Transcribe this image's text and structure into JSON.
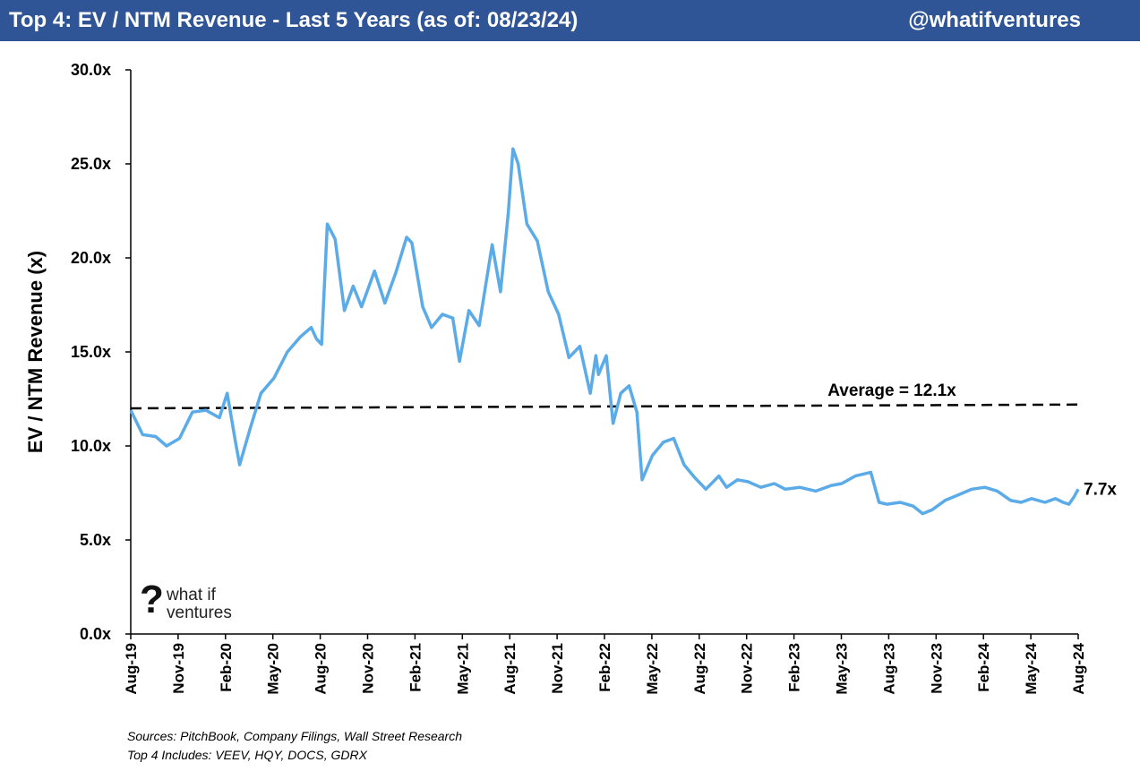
{
  "header": {
    "title": "Top 4: EV / NTM Revenue - Last 5 Years (as of: 08/23/24)",
    "handle": "@whatifventures"
  },
  "logo": {
    "symbol": "?",
    "line1": "what if",
    "line2": "ventures"
  },
  "footer": {
    "sources": "Sources: PitchBook, Company Filings, Wall Street Research",
    "includes": "Top 4 Includes: VEEV, HQY, DOCS, GDRX"
  },
  "chart_data": {
    "type": "line",
    "title": "Top 4: EV / NTM Revenue - Last 5 Years (as of: 08/23/24)",
    "ylabel": "EV / NTM Revenue (x)",
    "ylim": [
      0,
      30
    ],
    "yticks": [
      0,
      5,
      10,
      15,
      20,
      25,
      30
    ],
    "ytick_labels": [
      "0.0x",
      "5.0x",
      "10.0x",
      "15.0x",
      "20.0x",
      "25.0x",
      "30.0x"
    ],
    "xlim": [
      "2019-08-23",
      "2024-08-23"
    ],
    "xtick_labels": [
      "Aug-19",
      "Nov-19",
      "Feb-20",
      "May-20",
      "Aug-20",
      "Nov-20",
      "Feb-21",
      "May-21",
      "Aug-21",
      "Nov-21",
      "Feb-22",
      "May-22",
      "Aug-22",
      "Nov-22",
      "Feb-23",
      "May-23",
      "Aug-23",
      "Nov-23",
      "Feb-24",
      "May-24",
      "Aug-24"
    ],
    "grid": false,
    "line_color": "#5aabe8",
    "average_color": "#000000",
    "series": [
      {
        "x": [
          "2019-08-23",
          "2019-09-15",
          "2019-10-10",
          "2019-10-31",
          "2019-11-25",
          "2019-12-20",
          "2020-01-15",
          "2020-02-10",
          "2020-02-25",
          "2020-03-12",
          "2020-03-20",
          "2020-04-10",
          "2020-04-30",
          "2020-05-25",
          "2020-06-20",
          "2020-07-15",
          "2020-08-05",
          "2020-08-15",
          "2020-08-25",
          "2020-09-05",
          "2020-09-20",
          "2020-10-08",
          "2020-10-25",
          "2020-11-10",
          "2020-12-05",
          "2020-12-25",
          "2021-01-15",
          "2021-02-05",
          "2021-02-15",
          "2021-03-08",
          "2021-03-25",
          "2021-04-15",
          "2021-05-05",
          "2021-05-18",
          "2021-06-05",
          "2021-06-25",
          "2021-07-20",
          "2021-08-05",
          "2021-08-20",
          "2021-08-29",
          "2021-09-08",
          "2021-09-25",
          "2021-10-15",
          "2021-11-05",
          "2021-11-25",
          "2021-12-15",
          "2022-01-05",
          "2022-01-25",
          "2022-02-05",
          "2022-02-10",
          "2022-02-25",
          "2022-03-10",
          "2022-03-25",
          "2022-04-10",
          "2022-04-25",
          "2022-05-05",
          "2022-05-25",
          "2022-06-15",
          "2022-07-05",
          "2022-07-25",
          "2022-08-15",
          "2022-09-05",
          "2022-09-30",
          "2022-10-15",
          "2022-11-05",
          "2022-11-25",
          "2022-12-20",
          "2023-01-15",
          "2023-02-05",
          "2023-03-05",
          "2023-04-05",
          "2023-05-05",
          "2023-05-25",
          "2023-06-20",
          "2023-07-20",
          "2023-08-05",
          "2023-08-20",
          "2023-09-15",
          "2023-10-10",
          "2023-10-28",
          "2023-11-15",
          "2023-12-10",
          "2024-01-05",
          "2024-01-31",
          "2024-02-25",
          "2024-03-20",
          "2024-04-15",
          "2024-05-05",
          "2024-05-25",
          "2024-06-20",
          "2024-07-10",
          "2024-07-25",
          "2024-08-05",
          "2024-08-15",
          "2024-08-23"
        ],
        "y": [
          11.9,
          10.6,
          10.5,
          10.0,
          10.4,
          11.8,
          11.9,
          11.5,
          12.8,
          10.2,
          9.0,
          11.0,
          12.8,
          13.6,
          15.0,
          15.8,
          16.3,
          15.7,
          15.4,
          21.8,
          21.0,
          17.2,
          18.5,
          17.4,
          19.3,
          17.6,
          19.2,
          21.1,
          20.8,
          17.4,
          16.3,
          17.0,
          16.8,
          14.5,
          17.2,
          16.4,
          20.7,
          18.2,
          22.4,
          25.8,
          25.0,
          21.8,
          20.9,
          18.2,
          17.0,
          14.7,
          15.3,
          12.8,
          14.8,
          13.8,
          14.8,
          11.2,
          12.8,
          13.2,
          11.8,
          8.2,
          9.5,
          10.2,
          10.4,
          9.0,
          8.3,
          7.7,
          8.4,
          7.8,
          8.2,
          8.1,
          7.8,
          8.0,
          7.7,
          7.8,
          7.6,
          7.9,
          8.0,
          8.4,
          8.6,
          7.0,
          6.9,
          7.0,
          6.8,
          6.4,
          6.6,
          7.1,
          7.4,
          7.7,
          7.8,
          7.6,
          7.1,
          7.0,
          7.2,
          7.0,
          7.2,
          7.0,
          6.9,
          7.3,
          7.7
        ]
      }
    ],
    "average": {
      "value": 12.1,
      "label": "Average = 12.1x",
      "y_start": 12.0,
      "y_end": 12.2
    },
    "last_value_label": "7.7x"
  }
}
